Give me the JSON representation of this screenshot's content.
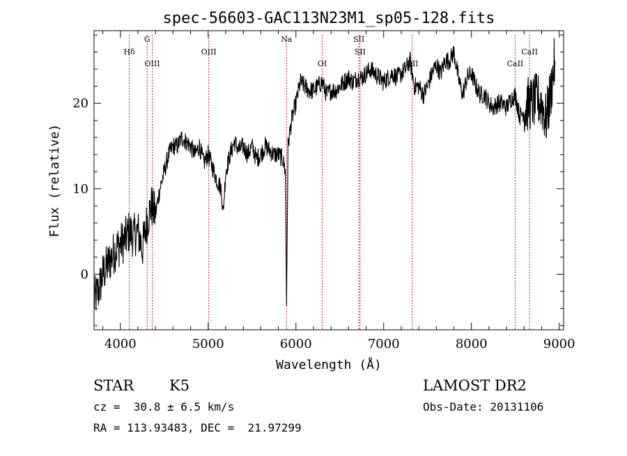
{
  "chart_data": {
    "type": "line",
    "title": "spec-56603-GAC113N23M1_sp05-128.fits",
    "xlabel": "Wavelength (Å)",
    "ylabel": "Flux (relative)",
    "xlim": [
      3700,
      9050
    ],
    "ylim": [
      -6.5,
      28.5
    ],
    "xticks": [
      4000,
      5000,
      6000,
      7000,
      8000,
      9000
    ],
    "yticks": [
      0,
      10,
      20
    ],
    "grid": false,
    "legend": "none",
    "line_color": "#000000",
    "marker_color": "#b22222",
    "spectral_lines": [
      {
        "label": "Hδ",
        "x": 4102,
        "tier": "low"
      },
      {
        "label": "G",
        "x": 4305,
        "tier": "high"
      },
      {
        "label": "OIII",
        "x": 4363,
        "tier": "low2"
      },
      {
        "label": "OIII",
        "x": 5007,
        "tier": "low"
      },
      {
        "label": "Na",
        "x": 5893,
        "tier": "high"
      },
      {
        "label": "OI",
        "x": 6300,
        "tier": "low2"
      },
      {
        "label": "SII",
        "x": 6717,
        "tier": "high"
      },
      {
        "label": "SII",
        "x": 6731,
        "tier": "low"
      },
      {
        "label": "OII",
        "x": 7325,
        "tier": "low2"
      },
      {
        "label": "CaII",
        "x": 8498,
        "tier": "low2"
      },
      {
        "label": "CaII",
        "x": 8662,
        "tier": "low"
      }
    ],
    "series": [
      {
        "x": [
          3700,
          3750,
          3800,
          3850,
          3900,
          3950,
          4000,
          4050,
          4100,
          4150,
          4200,
          4250,
          4300,
          4350,
          4400,
          4450,
          4500,
          4550,
          4600,
          4650,
          4700,
          4750,
          4800,
          4850,
          4900,
          4950,
          5000,
          5050,
          5100,
          5150,
          5170,
          5200,
          5250,
          5300,
          5350,
          5400,
          5450,
          5500,
          5550,
          5600,
          5650,
          5700,
          5750,
          5800,
          5850,
          5880,
          5893,
          5910,
          5950,
          6000,
          6050,
          6100,
          6150,
          6200,
          6250,
          6300,
          6350,
          6400,
          6450,
          6500,
          6550,
          6600,
          6650,
          6700,
          6750,
          6800,
          6850,
          6900,
          6950,
          7000,
          7050,
          7100,
          7150,
          7200,
          7250,
          7300,
          7350,
          7400,
          7450,
          7500,
          7550,
          7600,
          7650,
          7700,
          7750,
          7800,
          7850,
          7900,
          7950,
          8000,
          8050,
          8100,
          8150,
          8200,
          8250,
          8300,
          8350,
          8400,
          8450,
          8500,
          8550,
          8600,
          8650,
          8700,
          8750,
          8800,
          8850,
          8900,
          8950
        ],
        "y": [
          -3,
          -2,
          0,
          1,
          2,
          3,
          3.5,
          4,
          5,
          4.5,
          5,
          3,
          6,
          8,
          7,
          10,
          12,
          14,
          15,
          15,
          16,
          15.5,
          15,
          14,
          15,
          13,
          14,
          12.5,
          11,
          10,
          7,
          12,
          14,
          15.5,
          14.5,
          15,
          14,
          15,
          13.5,
          14,
          15,
          14.5,
          14,
          14,
          13.5,
          12,
          -3.5,
          15,
          18,
          20,
          22.5,
          22,
          21.5,
          21.5,
          22,
          22.5,
          21,
          21.5,
          21.5,
          22,
          22.5,
          23,
          22.5,
          23,
          23,
          23.5,
          24,
          23.5,
          23,
          22.5,
          23,
          23.5,
          23,
          23.5,
          24,
          25,
          22,
          22,
          21,
          22,
          23.5,
          24.5,
          23.5,
          25,
          25,
          26,
          23,
          21,
          23,
          23.5,
          22,
          21,
          21,
          20,
          19.5,
          20,
          20,
          19.5,
          20.5,
          21,
          18.5,
          19,
          20,
          20,
          20.5,
          20,
          18,
          21,
          25
        ]
      }
    ]
  },
  "info": {
    "object_class": "STAR",
    "subclass": "K5",
    "survey": "LAMOST DR2",
    "velocity": "cz =  30.8 ± 6.5 km/s",
    "obs_date": "Obs-Date: 20131106",
    "coords": "RA = 113.93483, DEC =  21.97299"
  }
}
